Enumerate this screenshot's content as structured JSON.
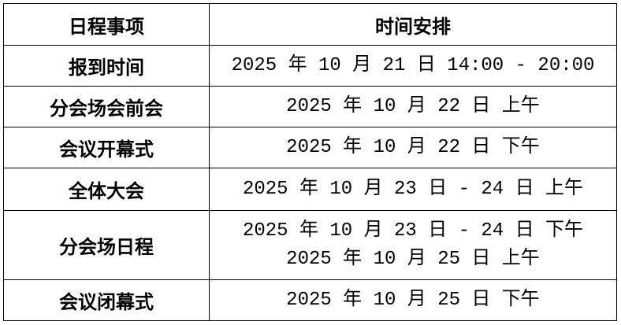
{
  "table": {
    "headers": [
      "日程事项",
      "时间安排"
    ],
    "rows": [
      {
        "item": "报到时间",
        "times": [
          "2025 年 10 月 21 日 14:00 - 20:00"
        ]
      },
      {
        "item": "分会场会前会",
        "times": [
          "2025 年 10 月 22 日 上午"
        ]
      },
      {
        "item": "会议开幕式",
        "times": [
          "2025 年 10 月 22 日 下午"
        ]
      },
      {
        "item": "全体大会",
        "times": [
          "2025 年 10 月 23 日 - 24 日 上午"
        ]
      },
      {
        "item": "分会场日程",
        "times": [
          "2025 年 10 月 23 日 - 24 日 下午",
          "2025 年 10 月 25 日 上午"
        ]
      },
      {
        "item": "会议闭幕式",
        "times": [
          "2025 年 10 月 25 日 下午"
        ]
      }
    ]
  }
}
